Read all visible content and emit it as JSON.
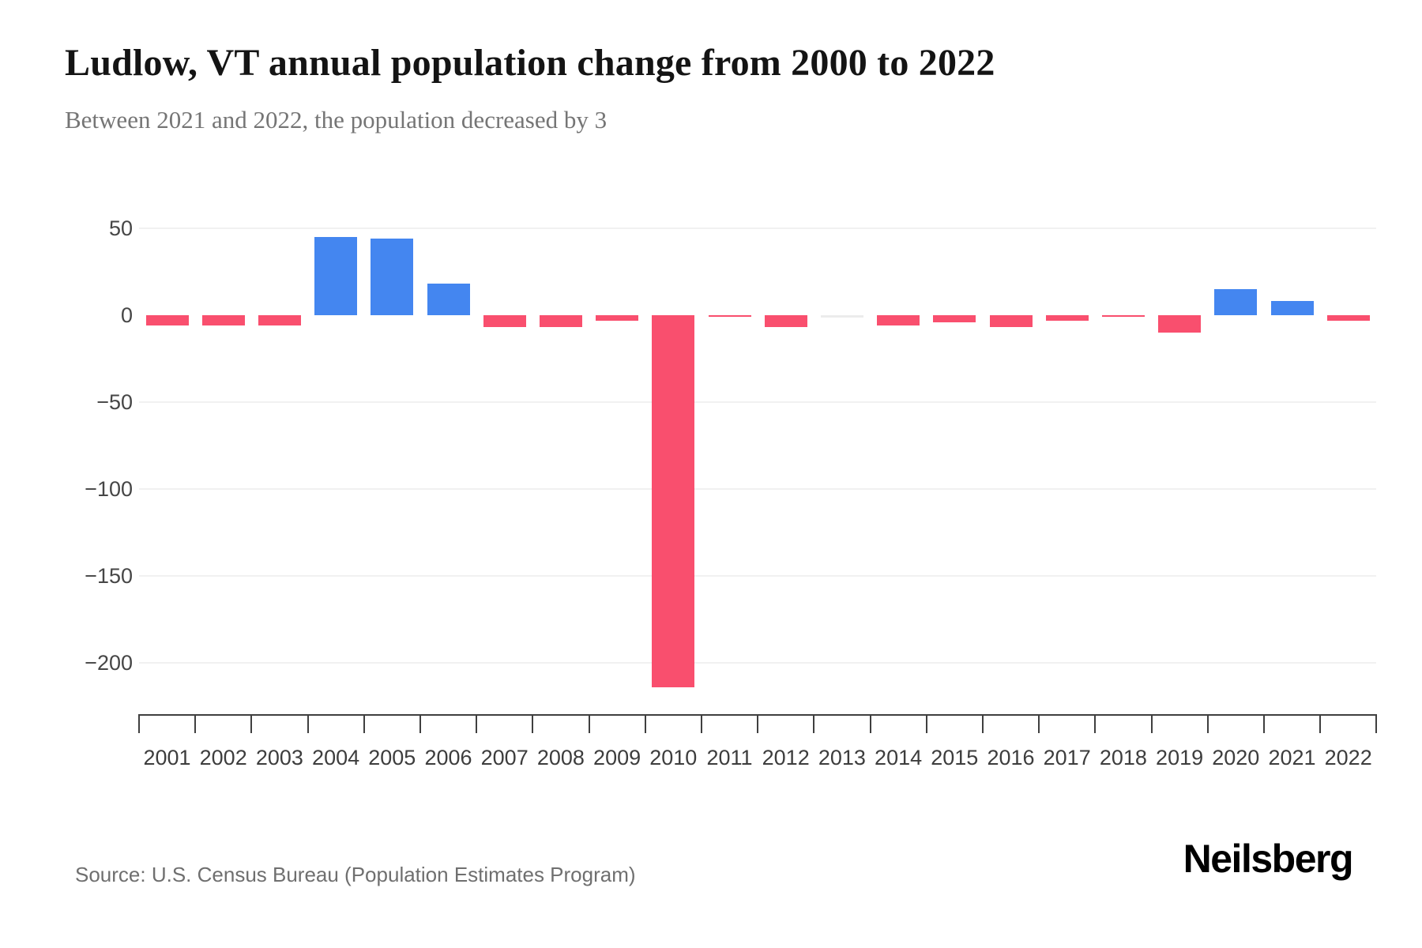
{
  "header": {
    "title": "Ludlow, VT annual population change from 2000 to 2022",
    "subtitle": "Between 2021 and 2022, the population decreased by 3"
  },
  "chart_data": {
    "type": "bar",
    "title": "Ludlow, VT annual population change from 2000 to 2022",
    "subtitle": "Between 2021 and 2022, the population decreased by 3",
    "categories": [
      "2001",
      "2002",
      "2003",
      "2004",
      "2005",
      "2006",
      "2007",
      "2008",
      "2009",
      "2010",
      "2011",
      "2012",
      "2013",
      "2014",
      "2015",
      "2016",
      "2017",
      "2018",
      "2019",
      "2020",
      "2021",
      "2022"
    ],
    "values": [
      -6,
      -6,
      -6,
      45,
      44,
      18,
      -7,
      -7,
      -3,
      -214,
      -1,
      -7,
      0,
      -6,
      -4,
      -7,
      -3,
      -1,
      -10,
      15,
      8,
      -3
    ],
    "xlabel": "",
    "ylabel": "",
    "ylim": [
      -230,
      60
    ],
    "y_ticks": [
      {
        "label": "50",
        "value": 50
      },
      {
        "label": "0",
        "value": 0
      },
      {
        "label": "−50",
        "value": -50
      },
      {
        "label": "−100",
        "value": -100
      },
      {
        "label": "−150",
        "value": -150
      },
      {
        "label": "−200",
        "value": -200
      }
    ],
    "grid": "horizontal-only",
    "legend": "none",
    "colors": {
      "positive": "#4486f0",
      "negative": "#f94f6e",
      "zero": "#ececec"
    }
  },
  "footer": {
    "source": "Source: U.S. Census Bureau (Population Estimates Program)",
    "logo": "Neilsberg"
  }
}
